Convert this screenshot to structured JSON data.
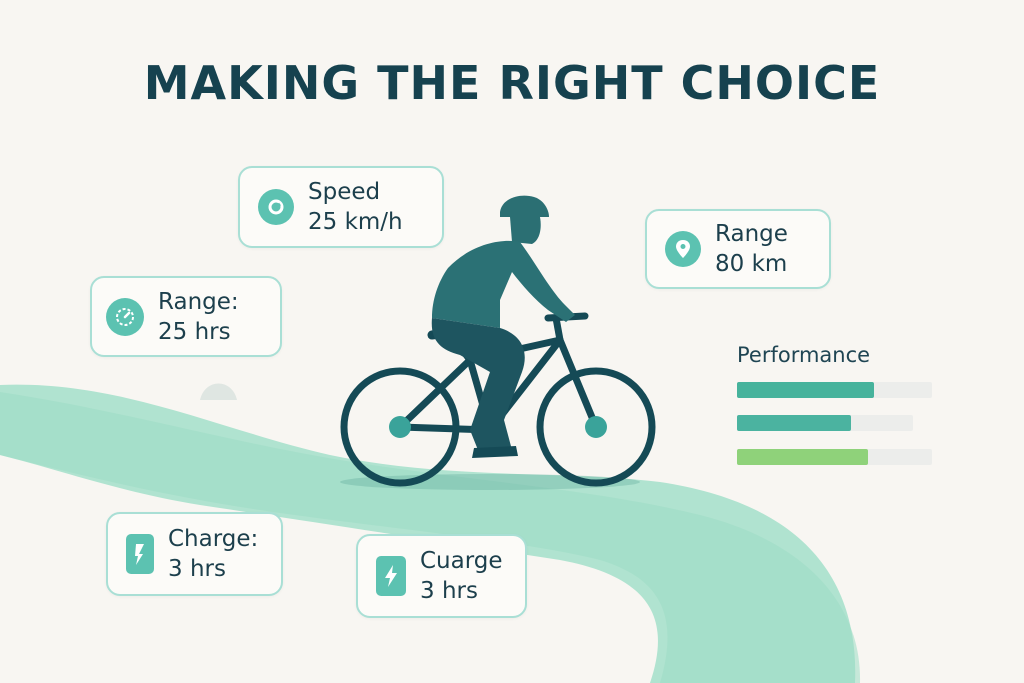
{
  "title": "MAKING THE RIGHT CHOICE",
  "colors": {
    "background": "#f8f6f2",
    "accent": "#5cc2b1",
    "road": "#a7e1cc",
    "rider": "#2b6f73",
    "title": "#16424f"
  },
  "cards": {
    "speed": {
      "label": "Speed",
      "value": "25 km/h",
      "icon": "speedometer-icon"
    },
    "range_km": {
      "label": "Range",
      "value": "80 km",
      "icon": "location-pin-icon"
    },
    "range_hrs": {
      "label": "Range:",
      "value": "25 hrs",
      "icon": "gauge-icon"
    },
    "charge": {
      "label": "Charge:",
      "value": "3 hrs",
      "icon": "battery-charge-icon"
    },
    "cuarge": {
      "label": "Cuarge",
      "value": "3 hrs",
      "icon": "battery-bolt-icon"
    }
  },
  "performance": {
    "label": "Performance",
    "bars": [
      {
        "fraction": 0.7,
        "color": "#46b39c"
      },
      {
        "fraction": 0.65,
        "color": "#4bb3a0"
      },
      {
        "fraction": 0.67,
        "color": "#8fd27a"
      }
    ]
  }
}
